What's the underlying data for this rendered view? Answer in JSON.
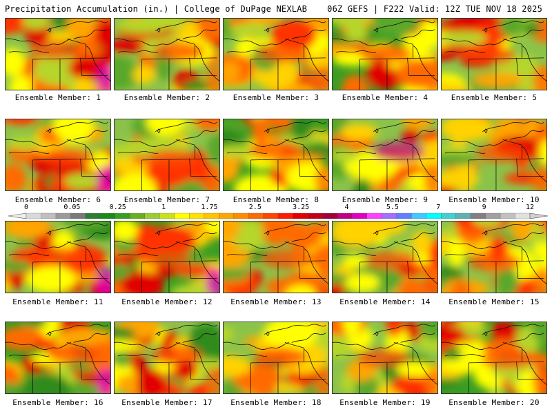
{
  "header": {
    "title_left": "Precipitation Accumulation (in.) | College of DuPage NEXLAB",
    "title_right": "06Z GEFS | F222 Valid: 12Z TUE NOV 18 2025"
  },
  "members": [
    {
      "label": "Ensemble Member: 1"
    },
    {
      "label": "Ensemble Member: 2"
    },
    {
      "label": "Ensemble Member: 3"
    },
    {
      "label": "Ensemble Member: 4"
    },
    {
      "label": "Ensemble Member: 5"
    },
    {
      "label": "Ensemble Member: 6"
    },
    {
      "label": "Ensemble Member: 7"
    },
    {
      "label": "Ensemble Member: 8"
    },
    {
      "label": "Ensemble Member: 9"
    },
    {
      "label": "Ensemble Member: 10"
    },
    {
      "label": "Ensemble Member: 11"
    },
    {
      "label": "Ensemble Member: 12"
    },
    {
      "label": "Ensemble Member: 13"
    },
    {
      "label": "Ensemble Member: 14"
    },
    {
      "label": "Ensemble Member: 15"
    },
    {
      "label": "Ensemble Member: 16"
    },
    {
      "label": "Ensemble Member: 17"
    },
    {
      "label": "Ensemble Member: 18"
    },
    {
      "label": "Ensemble Member: 19"
    },
    {
      "label": "Ensemble Member: 20"
    }
  ],
  "colorbar": {
    "tick_labels": [
      "0",
      "0.05",
      "0.25",
      "1",
      "1.75",
      "2.5",
      "3.25",
      "4",
      "5.5",
      "7",
      "9",
      "12"
    ],
    "colors": [
      "#d9d9d9",
      "#bfbfbf",
      "#9a9a9a",
      "#7a7a7a",
      "#2e7d32",
      "#1b8a1b",
      "#3a9d23",
      "#6aaf1f",
      "#9acd32",
      "#c8e01e",
      "#ffff00",
      "#ffe000",
      "#ffc400",
      "#ffa500",
      "#ff8c00",
      "#ff6a00",
      "#ff4500",
      "#ff1a00",
      "#e00000",
      "#c00018",
      "#a0003c",
      "#c00080",
      "#e000c0",
      "#ff40ff",
      "#a070ff",
      "#6080ff",
      "#40c8ff",
      "#00ffff",
      "#40d0d0",
      "#60b0b0",
      "#808080",
      "#a0a0a0",
      "#c0c0c0",
      "#e0e0e0"
    ]
  },
  "chart_data": {
    "type": "heatmap",
    "title": "Precipitation Accumulation (in.) | College of DuPage NEXLAB",
    "subtitle": "06Z GEFS | F222 Valid: 12Z TUE NOV 18 2025",
    "panels": [
      "Ensemble Member: 1",
      "Ensemble Member: 2",
      "Ensemble Member: 3",
      "Ensemble Member: 4",
      "Ensemble Member: 5",
      "Ensemble Member: 6",
      "Ensemble Member: 7",
      "Ensemble Member: 8",
      "Ensemble Member: 9",
      "Ensemble Member: 10",
      "Ensemble Member: 11",
      "Ensemble Member: 12",
      "Ensemble Member: 13",
      "Ensemble Member: 14",
      "Ensemble Member: 15",
      "Ensemble Member: 16",
      "Ensemble Member: 17",
      "Ensemble Member: 18",
      "Ensemble Member: 19",
      "Ensemble Member: 20"
    ],
    "colorbar_ticks": [
      0,
      0.05,
      0.25,
      1,
      1.75,
      2.5,
      3.25,
      4,
      5.5,
      7,
      9,
      12
    ]
  }
}
